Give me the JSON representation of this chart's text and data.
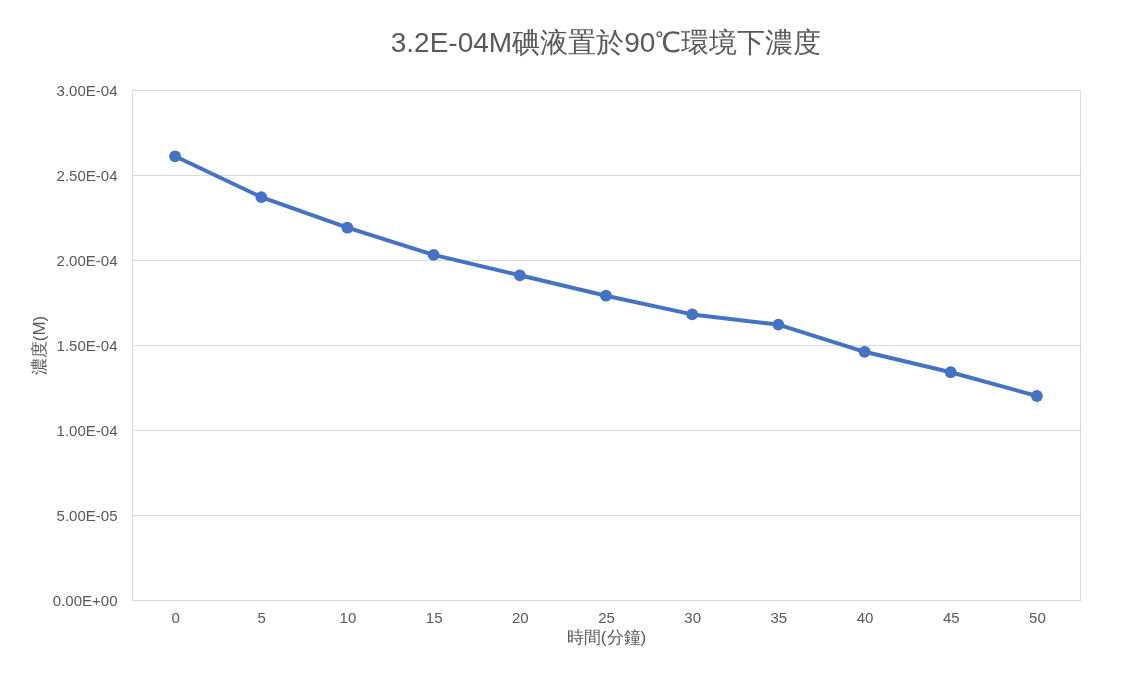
{
  "chart_data": {
    "type": "line",
    "title": "3.2E-04M碘液置於90℃環境下濃度",
    "xlabel": "時間(分鐘)",
    "ylabel": "濃度(M)",
    "categories": [
      "0",
      "5",
      "10",
      "15",
      "20",
      "25",
      "30",
      "35",
      "40",
      "45",
      "50"
    ],
    "series": [
      {
        "color": "#4472c4",
        "values": [
          0.000261,
          0.000237,
          0.000219,
          0.000203,
          0.000191,
          0.000179,
          0.000168,
          0.000162,
          0.000146,
          0.000134,
          0.00012
        ]
      }
    ],
    "ylim": [
      0,
      0.0003
    ],
    "yticks": [
      {
        "value": 0,
        "label": "0.00E+00"
      },
      {
        "value": 5e-05,
        "label": "5.00E-05"
      },
      {
        "value": 0.0001,
        "label": "1.00E-04"
      },
      {
        "value": 0.00015,
        "label": "1.50E-04"
      },
      {
        "value": 0.0002,
        "label": "2.00E-04"
      },
      {
        "value": 0.00025,
        "label": "2.50E-04"
      },
      {
        "value": 0.0003,
        "label": "3.00E-04"
      }
    ],
    "grid": "y",
    "marker": "circle",
    "line_style": "solid",
    "legend": false
  }
}
